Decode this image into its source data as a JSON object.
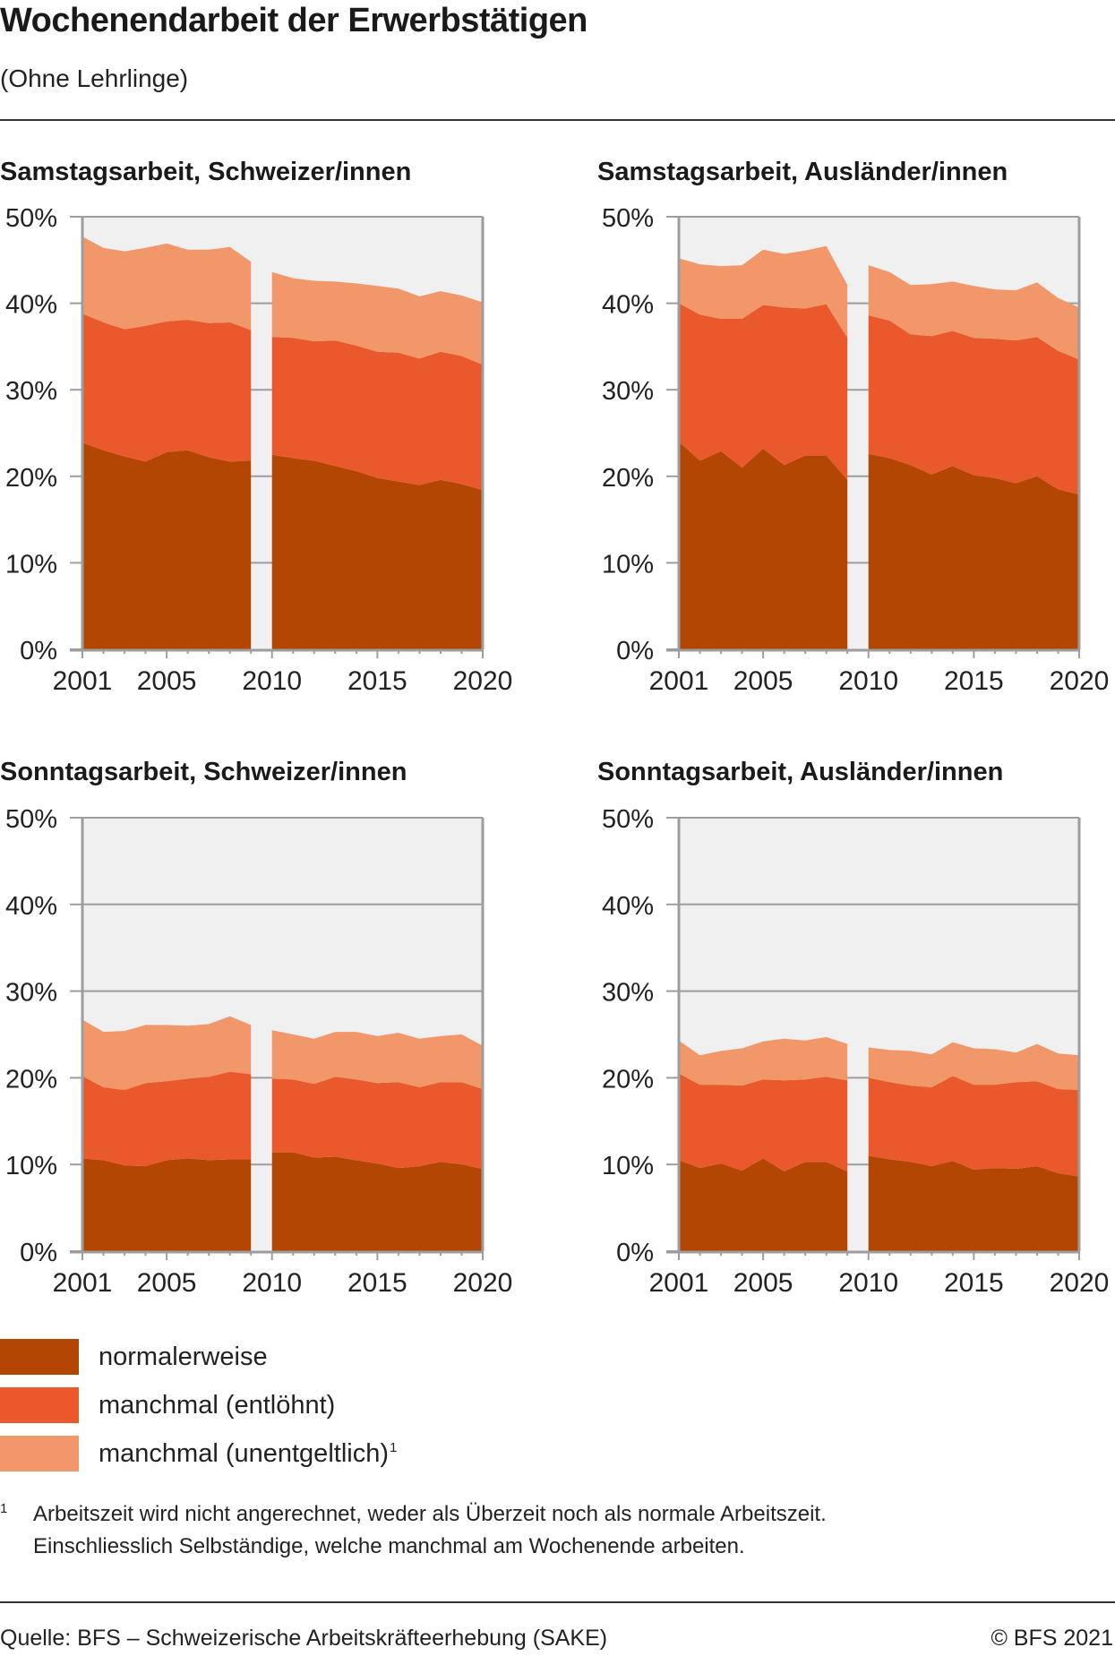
{
  "header": {
    "title": "Wochenendarbeit der Erwerbstätigen",
    "subtitle": "(Ohne Lehrlinge)"
  },
  "colors": {
    "normalerweise": "#b34603",
    "manchmal_entloehnt": "#e9592c",
    "manchmal_unentgeltlich": "#f2976a",
    "plot_background": "#f0f0f0",
    "axis": "#9d9d9d"
  },
  "legend": {
    "items": [
      {
        "label": "normalerweise",
        "color": "#b34603",
        "footnote": ""
      },
      {
        "label": "manchmal (entlöhnt)",
        "color": "#e9592c",
        "footnote": ""
      },
      {
        "label": "manchmal (unentgeltlich)",
        "color": "#f2976a",
        "footnote": "1"
      }
    ]
  },
  "footnote": {
    "mark": "1",
    "line1": "Arbeitszeit wird nicht angerechnet, weder als Überzeit noch als normale Arbeitszeit.",
    "line2": "Einschliesslich Selbständige, welche manchmal am Wochenende arbeiten."
  },
  "footer": {
    "source": "Quelle: BFS – Schweizerische Arbeitskräfteerhebung (SAKE)",
    "copyright": "© BFS 2021"
  },
  "chart_data": [
    {
      "type": "area",
      "stacked": true,
      "title": "Samstagsarbeit, Schweizer/innen",
      "xlabel": "",
      "ylabel": "",
      "x": [
        2001,
        2002,
        2003,
        2004,
        2005,
        2006,
        2007,
        2008,
        2009,
        2010,
        2011,
        2012,
        2013,
        2014,
        2015,
        2016,
        2017,
        2018,
        2019,
        2020
      ],
      "break_between": [
        2009,
        2010
      ],
      "xticks": [
        "2001",
        "2005",
        "2010",
        "2015",
        "2020"
      ],
      "yticks": [
        "0%",
        "10%",
        "20%",
        "30%",
        "40%",
        "50%"
      ],
      "ylim": [
        0,
        50
      ],
      "grid": true,
      "series": [
        {
          "name": "normalerweise",
          "values": [
            23.9,
            23.0,
            22.3,
            21.7,
            22.8,
            23.0,
            22.2,
            21.7,
            21.8,
            22.5,
            22.1,
            21.8,
            21.2,
            20.6,
            19.8,
            19.4,
            19.0,
            19.6,
            19.1,
            18.4
          ]
        },
        {
          "name": "manchmal (entlöhnt)",
          "values": [
            14.9,
            14.8,
            14.7,
            15.7,
            15.1,
            15.1,
            15.5,
            16.1,
            15.1,
            13.6,
            13.9,
            13.8,
            14.5,
            14.5,
            14.6,
            14.9,
            14.6,
            14.8,
            14.8,
            14.5
          ]
        },
        {
          "name": "manchmal (unentgeltlich)",
          "values": [
            8.9,
            8.6,
            9.0,
            9.0,
            9.0,
            8.1,
            8.5,
            8.7,
            7.9,
            7.5,
            6.9,
            7.0,
            6.8,
            7.2,
            7.6,
            7.4,
            7.2,
            7.0,
            7.0,
            7.2
          ]
        }
      ]
    },
    {
      "type": "area",
      "stacked": true,
      "title": "Samstagsarbeit, Ausländer/innen",
      "xlabel": "",
      "ylabel": "",
      "x": [
        2001,
        2002,
        2003,
        2004,
        2005,
        2006,
        2007,
        2008,
        2009,
        2010,
        2011,
        2012,
        2013,
        2014,
        2015,
        2016,
        2017,
        2018,
        2019,
        2020
      ],
      "break_between": [
        2009,
        2010
      ],
      "xticks": [
        "2001",
        "2005",
        "2010",
        "2015",
        "2020"
      ],
      "yticks": [
        "0%",
        "10%",
        "20%",
        "30%",
        "40%",
        "50%"
      ],
      "ylim": [
        0,
        50
      ],
      "grid": true,
      "series": [
        {
          "name": "normalerweise",
          "values": [
            24.0,
            21.8,
            22.9,
            21.0,
            23.2,
            21.3,
            22.4,
            22.4,
            19.6,
            22.6,
            22.1,
            21.3,
            20.2,
            21.2,
            20.1,
            19.8,
            19.2,
            20.0,
            18.5,
            17.9
          ]
        },
        {
          "name": "manchmal (entlöhnt)",
          "values": [
            16.0,
            16.9,
            15.3,
            17.2,
            16.6,
            18.2,
            17.0,
            17.5,
            16.4,
            16.0,
            15.9,
            15.1,
            16.0,
            15.6,
            15.9,
            16.1,
            16.5,
            16.1,
            16.0,
            15.6
          ]
        },
        {
          "name": "manchmal (unentgeltlich)",
          "values": [
            5.2,
            5.8,
            6.1,
            6.2,
            6.4,
            6.2,
            6.7,
            6.7,
            6.1,
            5.8,
            5.6,
            5.7,
            6.0,
            5.7,
            6.0,
            5.7,
            5.8,
            6.3,
            6.1,
            6.0
          ]
        }
      ]
    },
    {
      "type": "area",
      "stacked": true,
      "title": "Sonntagsarbeit, Schweizer/innen",
      "xlabel": "",
      "ylabel": "",
      "x": [
        2001,
        2002,
        2003,
        2004,
        2005,
        2006,
        2007,
        2008,
        2009,
        2010,
        2011,
        2012,
        2013,
        2014,
        2015,
        2016,
        2017,
        2018,
        2019,
        2020
      ],
      "break_between": [
        2009,
        2010
      ],
      "xticks": [
        "2001",
        "2005",
        "2010",
        "2015",
        "2020"
      ],
      "yticks": [
        "0%",
        "10%",
        "20%",
        "30%",
        "40%",
        "50%"
      ],
      "ylim": [
        0,
        50
      ],
      "grid": true,
      "series": [
        {
          "name": "normalerweise",
          "values": [
            10.7,
            10.5,
            9.9,
            9.8,
            10.5,
            10.7,
            10.5,
            10.6,
            10.6,
            11.4,
            11.4,
            10.8,
            10.9,
            10.5,
            10.1,
            9.6,
            9.8,
            10.3,
            10.0,
            9.5
          ]
        },
        {
          "name": "manchmal (entlöhnt)",
          "values": [
            9.5,
            8.4,
            8.7,
            9.6,
            9.1,
            9.2,
            9.6,
            10.1,
            9.8,
            8.5,
            8.4,
            8.5,
            9.2,
            9.3,
            9.3,
            9.9,
            9.1,
            9.2,
            9.5,
            9.2
          ]
        },
        {
          "name": "manchmal (unentgeltlich)",
          "values": [
            6.5,
            6.4,
            6.8,
            6.7,
            6.5,
            6.1,
            6.1,
            6.4,
            5.7,
            5.6,
            5.2,
            5.2,
            5.2,
            5.5,
            5.4,
            5.7,
            5.6,
            5.3,
            5.5,
            5.0
          ]
        }
      ]
    },
    {
      "type": "area",
      "stacked": true,
      "title": "Sonntagsarbeit, Ausländer/innen",
      "xlabel": "",
      "ylabel": "",
      "x": [
        2001,
        2002,
        2003,
        2004,
        2005,
        2006,
        2007,
        2008,
        2009,
        2010,
        2011,
        2012,
        2013,
        2014,
        2015,
        2016,
        2017,
        2018,
        2019,
        2020
      ],
      "break_between": [
        2009,
        2010
      ],
      "xticks": [
        "2001",
        "2005",
        "2010",
        "2015",
        "2020"
      ],
      "yticks": [
        "0%",
        "10%",
        "20%",
        "30%",
        "40%",
        "50%"
      ],
      "ylim": [
        0,
        50
      ],
      "grid": true,
      "series": [
        {
          "name": "normalerweise",
          "values": [
            10.5,
            9.6,
            10.1,
            9.3,
            10.7,
            9.2,
            10.3,
            10.3,
            9.2,
            11.0,
            10.6,
            10.3,
            9.8,
            10.4,
            9.4,
            9.6,
            9.5,
            9.8,
            9.0,
            8.6
          ]
        },
        {
          "name": "manchmal (entlöhnt)",
          "values": [
            10.0,
            9.6,
            9.1,
            9.8,
            9.1,
            10.5,
            9.5,
            9.8,
            10.5,
            9.0,
            8.9,
            8.8,
            9.1,
            9.8,
            9.8,
            9.6,
            10.0,
            9.8,
            9.7,
            10.0
          ]
        },
        {
          "name": "manchmal (unentgeltlich)",
          "values": [
            3.8,
            3.4,
            3.9,
            4.3,
            4.4,
            4.8,
            4.5,
            4.6,
            4.2,
            3.5,
            3.7,
            4.0,
            3.8,
            3.9,
            4.2,
            4.1,
            3.4,
            4.3,
            4.1,
            4.0
          ]
        }
      ]
    }
  ]
}
